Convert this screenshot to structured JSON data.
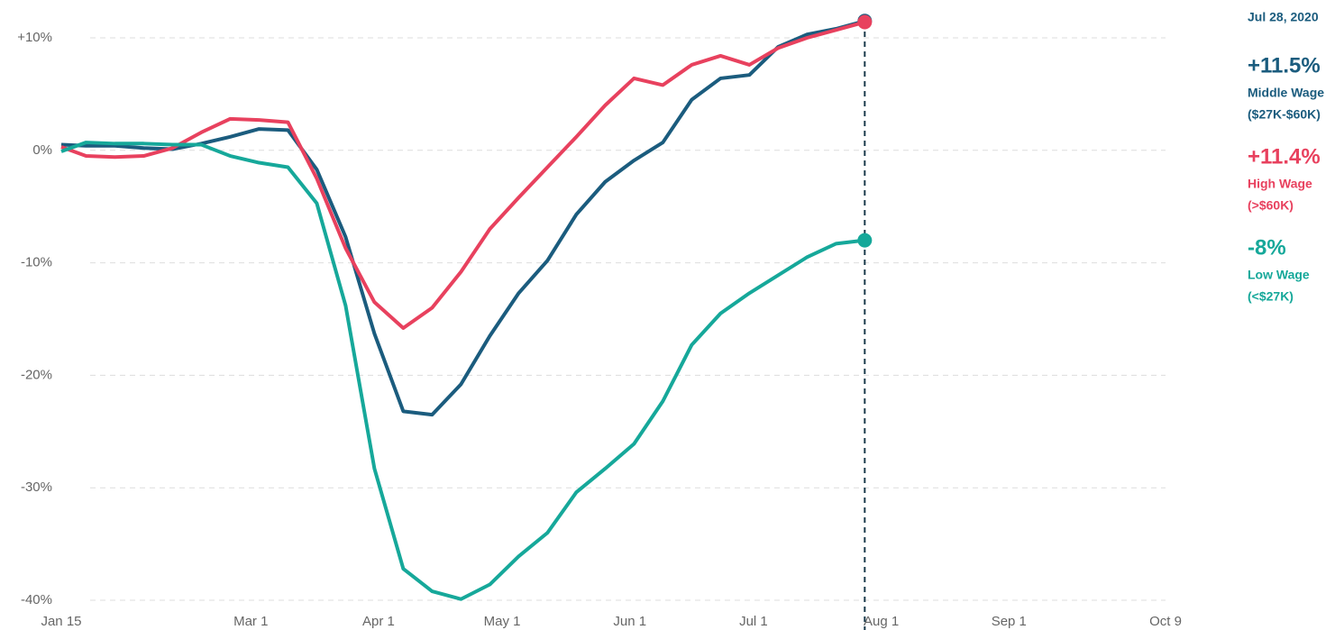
{
  "chart_data": {
    "type": "line",
    "x": [
      "2020-01-15",
      "2020-01-21",
      "2020-01-28",
      "2020-02-04",
      "2020-02-11",
      "2020-02-18",
      "2020-02-25",
      "2020-03-03",
      "2020-03-10",
      "2020-03-17",
      "2020-03-24",
      "2020-03-31",
      "2020-04-07",
      "2020-04-14",
      "2020-04-21",
      "2020-04-28",
      "2020-05-05",
      "2020-05-12",
      "2020-05-19",
      "2020-05-26",
      "2020-06-02",
      "2020-06-09",
      "2020-06-16",
      "2020-06-23",
      "2020-06-30",
      "2020-07-07",
      "2020-07-14",
      "2020-07-21",
      "2020-07-28"
    ],
    "series": [
      {
        "name": "Middle Wage",
        "range": "($27K-$60K)",
        "color": "#1b5c7e",
        "value_label": "+11.5%",
        "values": [
          0.5,
          0.4,
          0.4,
          0.2,
          0.1,
          0.6,
          1.2,
          1.9,
          1.8,
          -1.7,
          -7.7,
          -16.3,
          -23.2,
          -23.5,
          -20.8,
          -16.5,
          -12.7,
          -9.8,
          -5.7,
          -2.8,
          -0.9,
          0.7,
          4.5,
          6.4,
          6.7,
          9.2,
          10.3,
          10.8,
          11.5
        ]
      },
      {
        "name": "High Wage",
        "range": "(>$60K)",
        "color": "#e8415e",
        "value_label": "+11.4%",
        "values": [
          0.3,
          -0.5,
          -0.6,
          -0.5,
          0.2,
          1.6,
          2.8,
          2.7,
          2.5,
          -2.5,
          -8.7,
          -13.5,
          -15.8,
          -14,
          -10.8,
          -7,
          -4.2,
          -1.5,
          1.2,
          4,
          6.4,
          5.8,
          7.6,
          8.4,
          7.6,
          9.1,
          10,
          10.7,
          11.4
        ]
      },
      {
        "name": "Low Wage",
        "range": "(<$27K)",
        "color": "#16a89a",
        "value_label": "-8%",
        "values": [
          -0.1,
          0.7,
          0.6,
          0.6,
          0.5,
          0.5,
          -0.5,
          -1.1,
          -1.5,
          -4.7,
          -13.8,
          -28.3,
          -37.2,
          -39.2,
          -39.9,
          -38.6,
          -36.1,
          -34,
          -30.4,
          -28.3,
          -26.1,
          -22.3,
          -17.3,
          -14.5,
          -12.7,
          -11.1,
          -9.5,
          -8.3,
          -8
        ]
      }
    ],
    "annotation_date": "Jul 28, 2020",
    "xlim": [
      "2020-01-15",
      "2020-10-09"
    ],
    "xticks": [
      {
        "value": "2020-01-15",
        "label": "Jan 15"
      },
      {
        "value": "2020-03-01",
        "label": "Mar 1"
      },
      {
        "value": "2020-04-01",
        "label": "Apr 1"
      },
      {
        "value": "2020-05-01",
        "label": "May 1"
      },
      {
        "value": "2020-06-01",
        "label": "Jun 1"
      },
      {
        "value": "2020-07-01",
        "label": "Jul 1"
      },
      {
        "value": "2020-08-01",
        "label": "Aug 1"
      },
      {
        "value": "2020-09-01",
        "label": "Sep 1"
      },
      {
        "value": "2020-10-09",
        "label": "Oct 9"
      }
    ],
    "ylim": [
      -40,
      10
    ],
    "yticks": [
      {
        "value": 10,
        "label": "+10%"
      },
      {
        "value": 0,
        "label": "0%"
      },
      {
        "value": -10,
        "label": "-10%"
      },
      {
        "value": -20,
        "label": "-20%"
      },
      {
        "value": -30,
        "label": "-30%"
      },
      {
        "value": -40,
        "label": "-40%"
      }
    ],
    "grid": true
  }
}
